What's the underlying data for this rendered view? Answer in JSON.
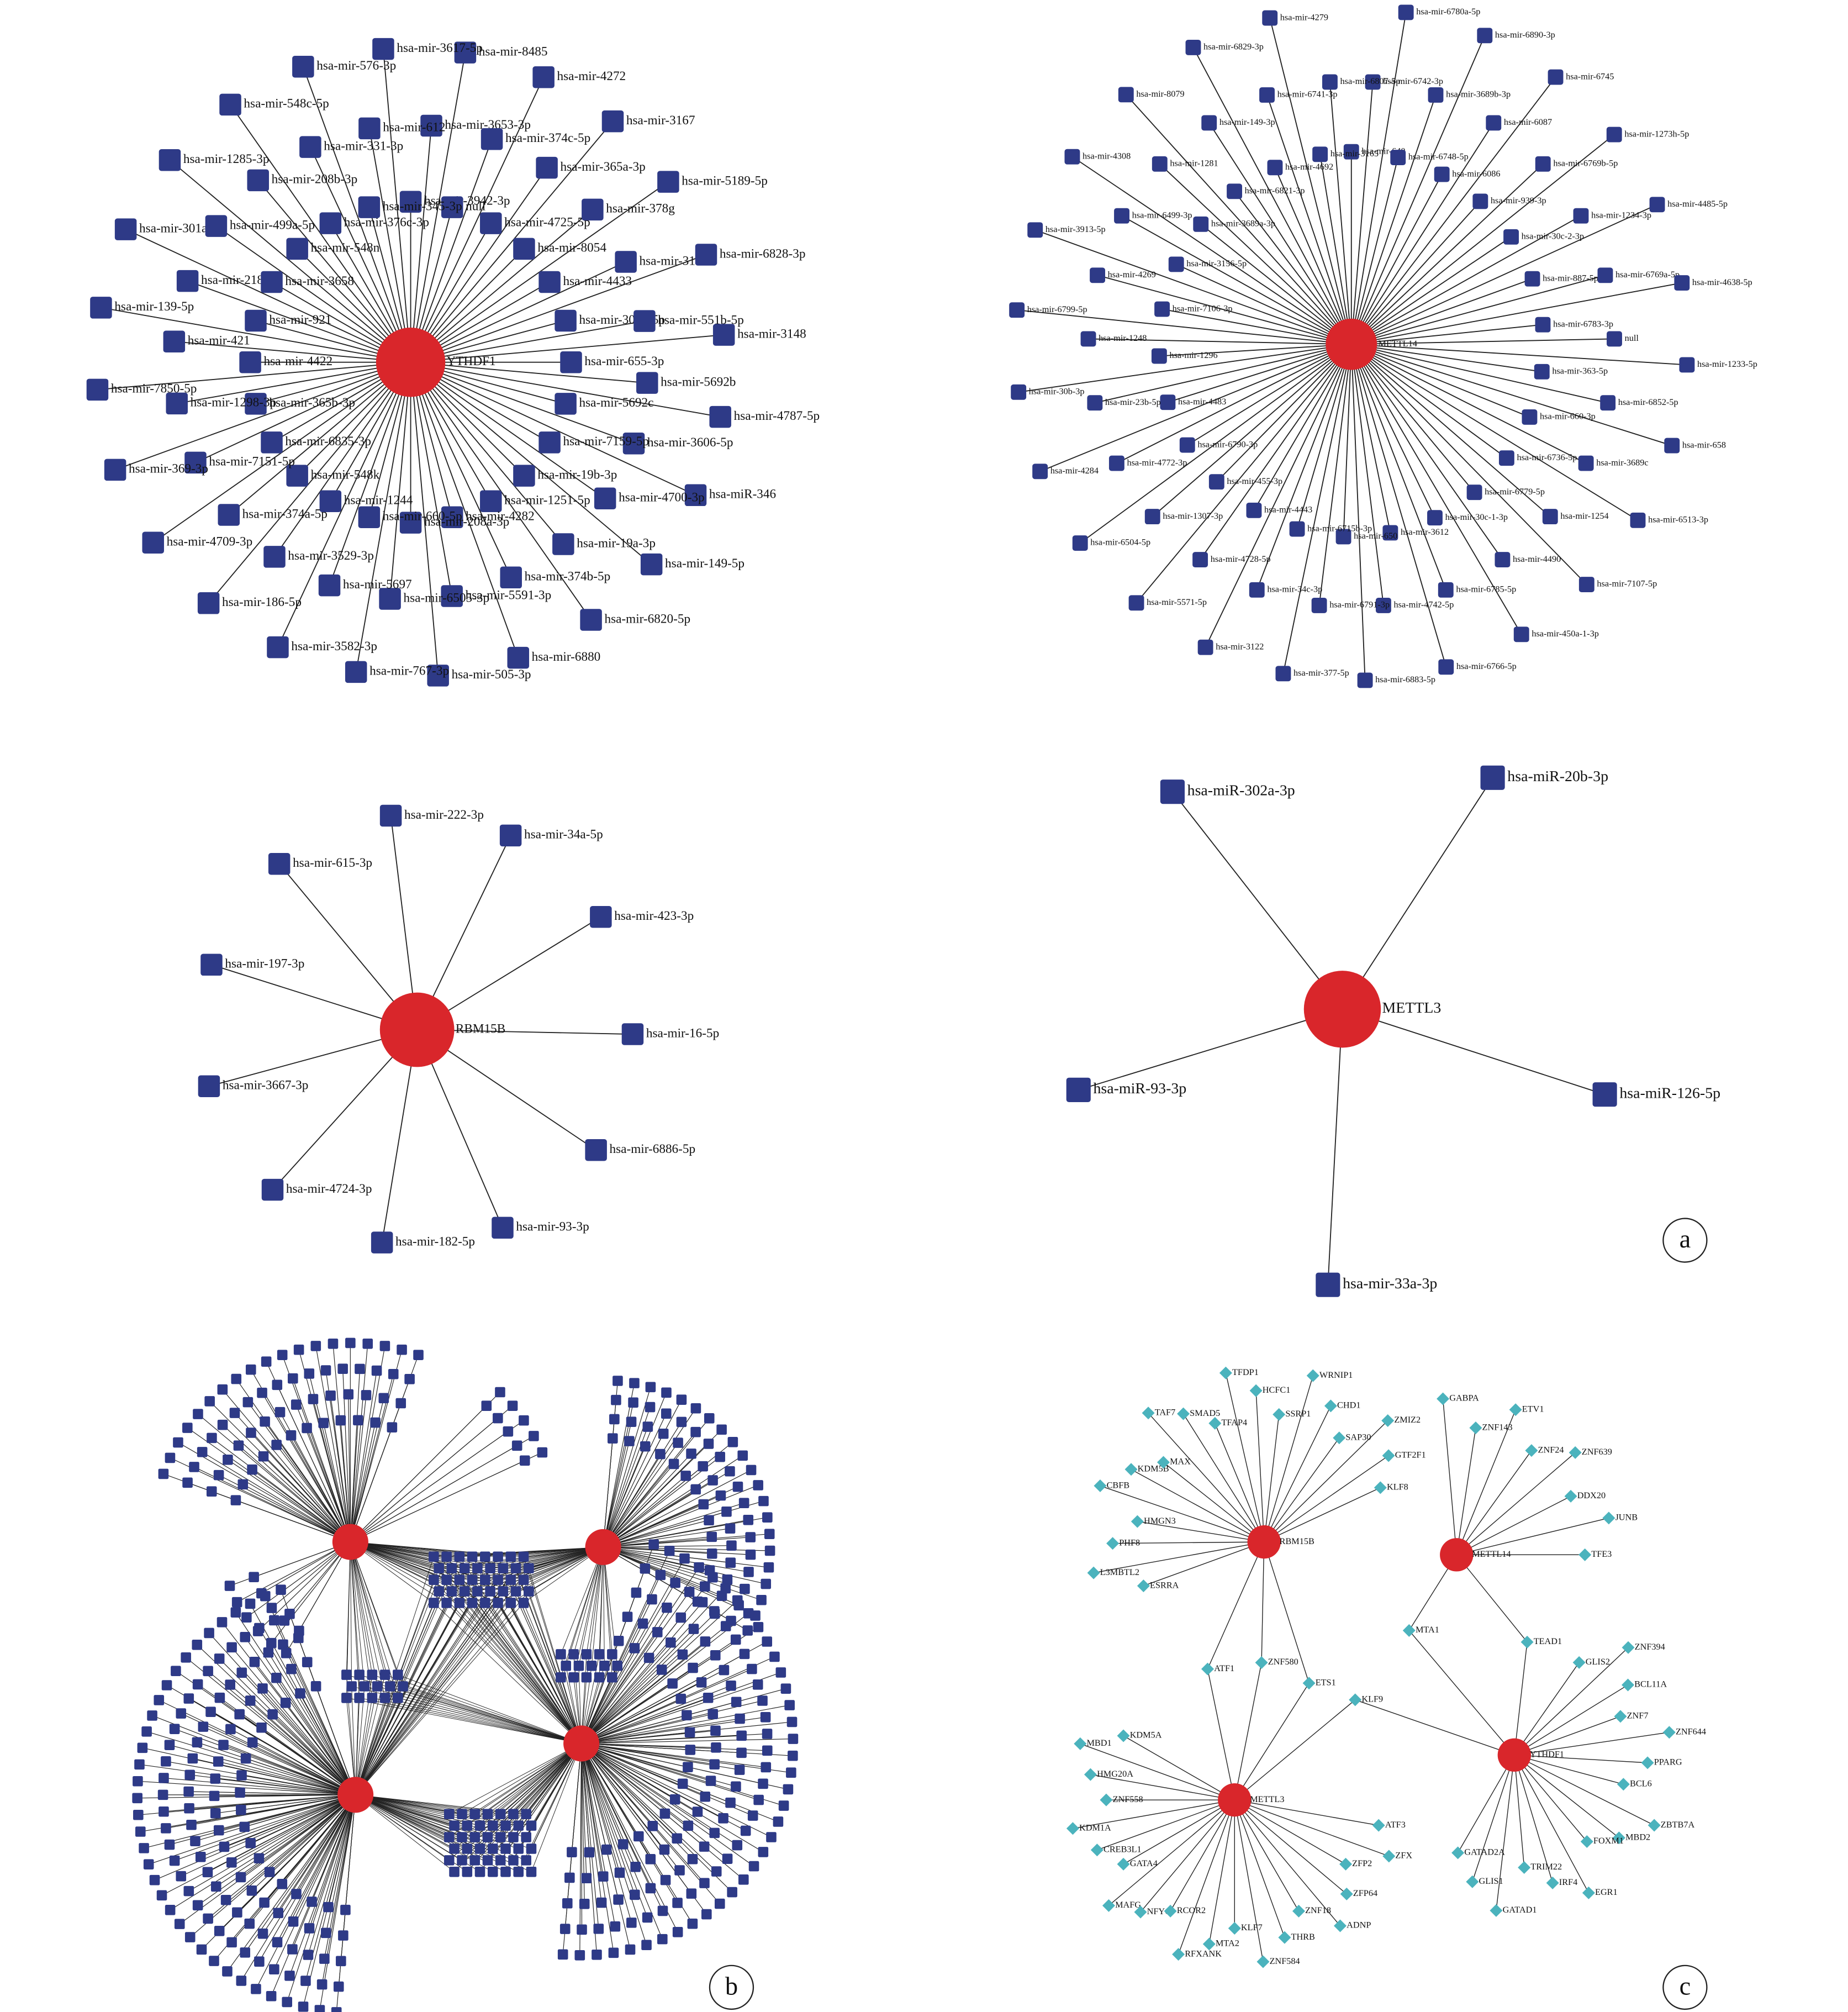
{
  "panel_a": {
    "label": "a",
    "networks": [
      {
        "hub": "YTHDF1",
        "targets": [
          "hsa-mir-3942-3p",
          "hsa-mir-3653-3p",
          "hsa-mir-8485",
          "null",
          "hsa-mir-374c-5p",
          "hsa-mir-4272",
          "hsa-mir-4725-5p",
          "hsa-mir-365a-3p",
          "hsa-mir-3167",
          "hsa-mir-8054",
          "hsa-mir-378g",
          "hsa-mir-5189-5p",
          "hsa-mir-4433",
          "hsa-mir-3159",
          "hsa-mir-6828-3p",
          "hsa-mir-3065-5p",
          "hsa-mir-551b-5p",
          "hsa-mir-3148",
          "hsa-mir-655-3p",
          "hsa-mir-5692b",
          "hsa-mir-4787-5p",
          "hsa-mir-5692c",
          "hsa-mir-3606-5p",
          "hsa-miR-346",
          "hsa-mir-7159-5p",
          "hsa-mir-4700-3p",
          "hsa-mir-149-5p",
          "hsa-mir-19b-3p",
          "hsa-mir-19a-3p",
          "hsa-mir-6820-5p",
          "hsa-mir-1251-5p",
          "hsa-mir-374b-5p",
          "hsa-mir-6880",
          "hsa-mir-4282",
          "hsa-mir-5591-3p",
          "hsa-mir-505-3p",
          "hsa-mir-208a-3p",
          "hsa-mir-6505-3p",
          "hsa-mir-767-3p",
          "hsa-mir-660-5p",
          "hsa-mir-5697",
          "hsa-mir-3582-3p",
          "hsa-mir-1244",
          "hsa-mir-3529-3p",
          "hsa-mir-186-5p",
          "hsa-mir-548k",
          "hsa-mir-374a-5p",
          "hsa-mir-4709-3p",
          "hsa-mir-6835-3p",
          "hsa-mir-7151-5p",
          "hsa-mir-369-3p",
          "hsa-mir-365b-3p",
          "hsa-mir-1298-3p",
          "hsa-mir-7850-5p",
          "hsa-mir-4422",
          "hsa-mir-421",
          "hsa-mir-139-5p",
          "hsa-mir-921",
          "hsa-mir-218-5p",
          "hsa-mir-301a-3p",
          "hsa-mir-3658",
          "hsa-mir-499a-5p",
          "hsa-mir-1285-3p",
          "hsa-mir-548n",
          "hsa-mir-208b-3p",
          "hsa-mir-548c-5p",
          "hsa-mir-376c-3p",
          "hsa-mir-331-3p",
          "hsa-mir-576-3p",
          "hsa-mir-345-3p",
          "hsa-mir-612",
          "hsa-mir-3617-5p"
        ]
      },
      {
        "hub": "METTL14",
        "targets": [
          "hsa-mir-640",
          "hsa-mir-6742-3p",
          "hsa-mir-6780a-5p",
          "hsa-mir-6748-5p",
          "hsa-mir-3689b-3p",
          "hsa-mir-6890-3p",
          "hsa-mir-6086",
          "hsa-mir-6087",
          "hsa-mir-6745",
          "hsa-mir-939-3p",
          "hsa-mir-6769b-5p",
          "hsa-mir-1273h-5p",
          "hsa-mir-30c-2-3p",
          "hsa-mir-1234-3p",
          "hsa-mir-4485-5p",
          "hsa-mir-887-5p",
          "hsa-mir-6769a-5p",
          "hsa-mir-4638-5p",
          "hsa-mir-6783-3p",
          "null",
          "hsa-mir-1233-5p",
          "hsa-mir-363-5p",
          "hsa-mir-6852-5p",
          "hsa-mir-658",
          "hsa-mir-660-3p",
          "hsa-mir-3689c",
          "hsa-mir-6513-3p",
          "hsa-mir-6736-5p",
          "hsa-mir-1254",
          "hsa-mir-7107-5p",
          "hsa-mir-6779-5p",
          "hsa-mir-4490",
          "hsa-mir-450a-1-3p",
          "hsa-mir-30c-1-3p",
          "hsa-mir-6785-5p",
          "hsa-mir-6766-5p",
          "hsa-mir-3612",
          "hsa-mir-4742-5p",
          "hsa-mir-6883-5p",
          "hsa-mir-650",
          "hsa-mir-6791-3p",
          "hsa-mir-377-5p",
          "hsa-mir-6715b-3p",
          "hsa-mir-34c-3p",
          "hsa-mir-3122",
          "hsa-mir-4443",
          "hsa-mir-4728-5p",
          "hsa-mir-5571-5p",
          "hsa-mir-455-3p",
          "hsa-mir-1307-3p",
          "hsa-mir-6504-5p",
          "hsa-mir-6790-3p",
          "hsa-mir-4772-3p",
          "hsa-mir-4284",
          "hsa-mir-4483",
          "hsa-mir-23b-5p",
          "hsa-mir-30b-3p",
          "hsa-mir-1296",
          "hsa-mir-1248",
          "hsa-mir-6799-5p",
          "hsa-mir-7106-3p",
          "hsa-mir-4269",
          "hsa-mir-3913-5p",
          "hsa-mir-3156-5p",
          "hsa-mir-6499-3p",
          "hsa-mir-4308",
          "hsa-mir-3689a-3p",
          "hsa-mir-1281",
          "hsa-mir-8079",
          "hsa-mir-6821-3p",
          "hsa-mir-149-3p",
          "hsa-mir-6829-3p",
          "hsa-mir-4692",
          "hsa-mir-6741-3p",
          "hsa-mir-4279",
          "hsa-mir-3165",
          "hsa-mir-6807-5p"
        ]
      },
      {
        "hub": "RBM15B",
        "targets": [
          "hsa-mir-222-3p",
          "hsa-mir-34a-5p",
          "hsa-mir-423-3p",
          "hsa-mir-16-5p",
          "hsa-mir-6886-5p",
          "hsa-mir-93-3p",
          "hsa-mir-182-5p",
          "hsa-mir-4724-3p",
          "hsa-mir-3667-3p",
          "hsa-mir-197-3p",
          "hsa-mir-615-3p"
        ]
      },
      {
        "hub": "METTL3",
        "targets": [
          "hsa-miR-302a-3p",
          "hsa-miR-20b-3p",
          "hsa-miR-93-3p",
          "hsa-miR-126-5p",
          "hsa-mir-33a-3p"
        ]
      }
    ]
  },
  "panel_b": {
    "label": "b"
  },
  "panel_c": {
    "label": "c",
    "hubs": [
      {
        "name": "RBM15B",
        "targets": [
          "ESRRA",
          "L3MBTL2",
          "PHF8",
          "HMGN3",
          "CBFB",
          "KDM5B",
          "MAX",
          "TAF7",
          "SMAD5",
          "TFAP4",
          "TFDP1",
          "HCFC1",
          "SSRP1",
          "WRNIP1",
          "CHD1",
          "SAP30",
          "ZMIZ2",
          "GTF2F1",
          "KLF8"
        ]
      },
      {
        "name": "METTL14",
        "targets": [
          "GABPA",
          "ZNF143",
          "ETV1",
          "ZNF24",
          "ZNF639",
          "DDX20",
          "JUNB",
          "TFE3"
        ]
      },
      {
        "name": "METTL3",
        "targets": [
          "KDM5A",
          "MBD1",
          "HMG20A",
          "ZNF558",
          "KDM1A",
          "CREB3L1",
          "GATA4",
          "MAFG",
          "NFYC",
          "RCOR2",
          "RFXANK",
          "MTA2",
          "KLF7",
          "ZNF584",
          "THRB",
          "ZNF18",
          "ADNP",
          "ZFP64",
          "ZFP2",
          "ZFX",
          "ATF3"
        ]
      },
      {
        "name": "YTHDF1",
        "targets": [
          "GLIS2",
          "ZNF394",
          "BCL11A",
          "ZNF7",
          "ZNF644",
          "PPARG",
          "BCL6",
          "ZBTB7A",
          "MBD2",
          "FOXM1",
          "EGR1",
          "IRF4",
          "TRIM22",
          "GATAD1",
          "GLIS1",
          "GATAD2A"
        ]
      }
    ],
    "shared": [
      "MTA1",
      "TEAD1",
      "ATF1",
      "ZNF580",
      "ETS1",
      "KLF9"
    ]
  }
}
